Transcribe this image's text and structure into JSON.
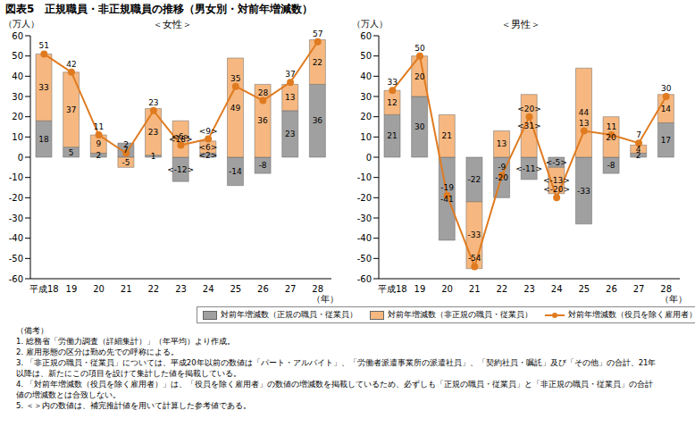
{
  "title": "図表5　正規職員・非正規職員の推移（男女別・対前年増減数）",
  "notes": [
    "（備考）",
    "1.  総務省「労働力調査（詳細集計）」（年平均）より作成。",
    "2.  雇用形態の区分は勤め先での呼称による。",
    "3.  「非正規の職員・従業員」については、平成20年以前の数値は「パート・アルバイト」、「労働者派遣事業所の派遣社員」、「契約社員・嘱託」及び「その他」の合計、21年以降は、新たにこの項目を設けて集計した値を掲載している。",
    "4.  「対前年増減数（役員を除く雇用者）」は、「役員を除く雇用者」の数値の増減数を掲載しているため、必ずしも「正規の職員・従業員」と「非正規の職員・従業員」の合計値の増減数とは合致しない。",
    "5.  ＜＞内の数値は、補完推計値を用いて計算した参考値である。"
  ],
  "chart_data": [
    {
      "type": "bar",
      "subtitle": "＜女性＞",
      "y_label": "（万人）",
      "x_label": "（年）",
      "stacked": true,
      "data_labels": true,
      "grid": false,
      "categories": [
        "平成18",
        "19",
        "20",
        "21",
        "22",
        "23",
        "24",
        "25",
        "26",
        "27",
        "28"
      ],
      "ylim": [
        -60,
        60
      ],
      "yticks": [
        -60,
        -50,
        -40,
        -30,
        -20,
        -10,
        0,
        10,
        20,
        30,
        40,
        50,
        60
      ],
      "series": [
        {
          "name": "対前年増減数（正規の職員・従業員）",
          "type": "bar",
          "color": "#a0a0a0",
          "values": [
            18,
            5,
            2,
            7,
            1,
            -12,
            2,
            -14,
            -8,
            23,
            36
          ],
          "value_labels": [
            "18",
            "5",
            "2",
            "7",
            "1",
            "<-12>",
            "<2>",
            "-14",
            "-8",
            "23",
            "36"
          ]
        },
        {
          "name": "対前年増減数（非正規の職員・従業員）",
          "type": "bar",
          "color": "#f6b880",
          "values": [
            33,
            37,
            9,
            -5,
            23,
            18,
            6,
            49,
            36,
            13,
            22
          ],
          "value_labels": [
            "33",
            "37",
            "9",
            "-5",
            "23",
            "<18>",
            "<6>",
            "49",
            "36",
            "13",
            "22"
          ]
        },
        {
          "name": "対前年増減数（役員を除く雇用者）",
          "type": "line",
          "color": "#e07b20",
          "marker": "circle",
          "values": [
            51,
            42,
            11,
            2,
            23,
            6,
            9,
            35,
            28,
            37,
            57
          ],
          "value_labels": [
            "51",
            "42",
            "11",
            "2",
            "23",
            "<6>",
            "<9>",
            "35",
            "28",
            "37",
            "57"
          ]
        }
      ]
    },
    {
      "type": "bar",
      "subtitle": "＜男性＞",
      "y_label": "（万人）",
      "x_label": "（年）",
      "stacked": true,
      "data_labels": true,
      "grid": false,
      "categories": [
        "平成18",
        "19",
        "20",
        "21",
        "22",
        "23",
        "24",
        "25",
        "26",
        "27",
        "28"
      ],
      "ylim": [
        -60,
        60
      ],
      "yticks": [
        -60,
        -50,
        -40,
        -30,
        -20,
        -10,
        0,
        10,
        20,
        30,
        40,
        50,
        60
      ],
      "series": [
        {
          "name": "対前年増減数（正規の職員・従業員）",
          "type": "bar",
          "color": "#a0a0a0",
          "values": [
            21,
            30,
            -41,
            -22,
            -20,
            -11,
            -5,
            -33,
            -8,
            2,
            17
          ],
          "value_labels": [
            "21",
            "30",
            "-41",
            "-22",
            "-20",
            "<-11>",
            "<-5>",
            "-33",
            "-8",
            "2",
            "17"
          ]
        },
        {
          "name": "対前年増減数（非正規の職員・従業員）",
          "type": "bar",
          "color": "#f6b880",
          "values": [
            12,
            20,
            21,
            -33,
            13,
            31,
            -13,
            44,
            20,
            4,
            14
          ],
          "value_labels": [
            "12",
            "20",
            "21",
            "-33",
            "13",
            "<31>",
            "<-13>",
            "44",
            "20",
            "4",
            "14"
          ]
        },
        {
          "name": "対前年増減数（役員を除く雇用者）",
          "type": "line",
          "color": "#e07b20",
          "marker": "circle",
          "values": [
            33,
            50,
            -19,
            -54,
            -9,
            20,
            -20,
            13,
            11,
            7,
            30
          ],
          "value_labels": [
            "33",
            "50",
            "-19",
            "-54",
            "-9",
            "<20>",
            "<-20>",
            "13",
            "11",
            "7",
            "30"
          ]
        }
      ]
    }
  ]
}
